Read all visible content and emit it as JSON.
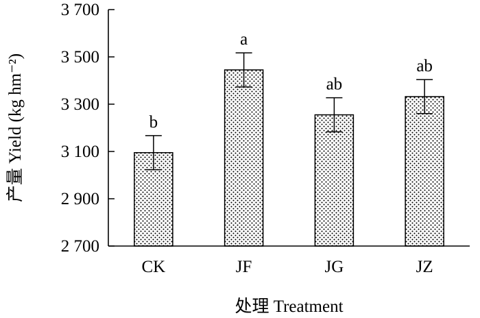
{
  "chart_data": {
    "type": "bar",
    "categories": [
      "CK",
      "JF",
      "JG",
      "JZ"
    ],
    "series": [
      {
        "values": [
          3095,
          3445,
          3255,
          3332
        ],
        "errors": [
          72,
          72,
          72,
          72
        ],
        "significance": [
          "b",
          "a",
          "ab",
          "ab"
        ]
      }
    ],
    "xlabel": "处理 Treatment",
    "ylabel": "产量 Yield (kg hm⁻²)",
    "ylim": [
      2700,
      3700
    ],
    "yticks": [
      2700,
      2900,
      3100,
      3300,
      3500,
      3700
    ],
    "ytick_labels": [
      "2 700",
      "2 900",
      "3 100",
      "3 300",
      "3 500",
      "3 700"
    ],
    "bar_fill": "dotted",
    "grid": false,
    "legend": "none"
  }
}
